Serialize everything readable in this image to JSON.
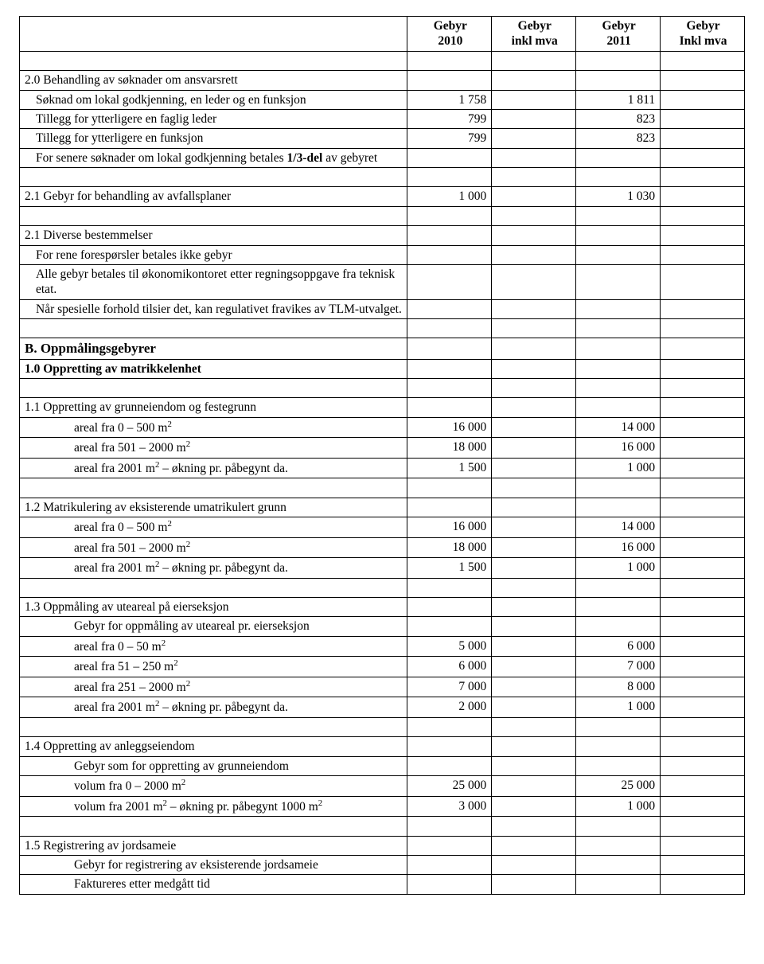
{
  "header": {
    "col1a": "Gebyr",
    "col1b": "2010",
    "col2a": "Gebyr",
    "col2b": "inkl mva",
    "col3a": "Gebyr",
    "col3b": "2011",
    "col4a": "Gebyr",
    "col4b": "Inkl mva"
  },
  "rows": [
    {
      "t": "blank"
    },
    {
      "t": "text",
      "cls": "sub-head",
      "text": "2.0 Behandling av søknader om ansvarsrett"
    },
    {
      "t": "data",
      "cls": "indent-1",
      "text": "Søknad om lokal godkjenning, en leder og en funksjon",
      "c1": "1 758",
      "c3": "1 811"
    },
    {
      "t": "data",
      "cls": "indent-1",
      "text": "Tillegg for ytterligere en faglig leder",
      "c1": "799",
      "c3": "823"
    },
    {
      "t": "data",
      "cls": "indent-1",
      "text": "Tillegg for ytterligere en funksjon",
      "c1": "799",
      "c3": "823"
    },
    {
      "t": "html",
      "cls": "indent-1",
      "html": "For senere søknader om lokal godkjenning betales <span class=\"bold-part\">1/3-del</span> av gebyret"
    },
    {
      "t": "blank"
    },
    {
      "t": "data",
      "cls": "sub-head",
      "text": "2.1 Gebyr for behandling av avfallsplaner",
      "c1": "1 000",
      "c3": "1 030"
    },
    {
      "t": "blank"
    },
    {
      "t": "text",
      "cls": "sub-head",
      "text": "2.1 Diverse bestemmelser"
    },
    {
      "t": "text",
      "cls": "indent-1",
      "text": "For rene forespørsler betales ikke gebyr"
    },
    {
      "t": "text",
      "cls": "indent-1",
      "text": "Alle gebyr betales til økonomikontoret etter regningsoppgave fra teknisk etat."
    },
    {
      "t": "text",
      "cls": "indent-1",
      "text": "Når spesielle forhold tilsier det, kan regulativet fravikes av TLM-utvalget."
    },
    {
      "t": "blank"
    },
    {
      "t": "text",
      "cls": "section-head",
      "text": "B. Oppmålingsgebyrer"
    },
    {
      "t": "text",
      "cls": "sub-head bold-part",
      "text": "1.0 Oppretting av matrikkelenhet"
    },
    {
      "t": "blank"
    },
    {
      "t": "text",
      "cls": "sub-head",
      "text": "1.1 Oppretting av grunneiendom og festegrunn"
    },
    {
      "t": "data-html",
      "cls": "indent-2",
      "html": "areal fra 0 – 500 m<sup>2</sup>",
      "c1": "16 000",
      "c3": "14 000"
    },
    {
      "t": "data-html",
      "cls": "indent-2",
      "html": "areal fra 501 – 2000 m<sup>2</sup>",
      "c1": "18 000",
      "c3": "16 000"
    },
    {
      "t": "data-html",
      "cls": "indent-2",
      "html": "areal fra 2001 m<sup>2</sup> – økning pr. påbegynt da.",
      "c1": "1 500",
      "c3": "1 000"
    },
    {
      "t": "blank"
    },
    {
      "t": "text",
      "cls": "sub-head",
      "text": "1.2 Matrikulering av eksisterende umatrikulert grunn"
    },
    {
      "t": "data-html",
      "cls": "indent-2",
      "html": "areal fra 0 – 500 m<sup>2</sup>",
      "c1": "16 000",
      "c3": "14 000"
    },
    {
      "t": "data-html",
      "cls": "indent-2",
      "html": "areal fra 501 – 2000 m<sup>2</sup>",
      "c1": "18 000",
      "c3": "16 000"
    },
    {
      "t": "data-html",
      "cls": "indent-2",
      "html": "areal fra 2001 m<sup>2</sup> – økning pr. påbegynt da.",
      "c1": "1 500",
      "c3": "1 000"
    },
    {
      "t": "blank"
    },
    {
      "t": "text",
      "cls": "sub-head",
      "text": "1.3 Oppmåling av uteareal på eierseksjon"
    },
    {
      "t": "text",
      "cls": "indent-2",
      "text": "Gebyr for oppmåling av uteareal pr. eierseksjon"
    },
    {
      "t": "data-html",
      "cls": "indent-2",
      "html": "areal fra 0 – 50 m<sup>2</sup>",
      "c1": "5 000",
      "c3": "6 000"
    },
    {
      "t": "data-html",
      "cls": "indent-2",
      "html": "areal fra 51 – 250 m<sup>2</sup>",
      "c1": "6 000",
      "c3": "7 000"
    },
    {
      "t": "data-html",
      "cls": "indent-2",
      "html": "areal fra 251 – 2000 m<sup>2</sup>",
      "c1": "7 000",
      "c3": "8 000"
    },
    {
      "t": "data-html",
      "cls": "indent-2",
      "html": "areal fra 2001 m<sup>2</sup> – økning pr. påbegynt da.",
      "c1": "2 000",
      "c3": "1 000"
    },
    {
      "t": "blank"
    },
    {
      "t": "text",
      "cls": "sub-head",
      "text": "1.4 Oppretting av anleggseiendom"
    },
    {
      "t": "text",
      "cls": "indent-2",
      "text": "Gebyr som for oppretting av grunneiendom"
    },
    {
      "t": "data-html",
      "cls": "indent-2",
      "html": "volum fra 0 – 2000 m<sup>2</sup>",
      "c1": "25 000",
      "c3": "25 000"
    },
    {
      "t": "data-html",
      "cls": "indent-2",
      "html": "volum fra 2001 m<sup>2</sup> – økning pr. påbegynt 1000 m<sup>2</sup>",
      "c1": "3 000",
      "c3": "1 000"
    },
    {
      "t": "blank"
    },
    {
      "t": "text",
      "cls": "sub-head",
      "text": "1.5 Registrering av jordsameie"
    },
    {
      "t": "text",
      "cls": "indent-2",
      "text": "Gebyr for registrering av eksisterende jordsameie"
    },
    {
      "t": "text",
      "cls": "indent-2",
      "text": "Faktureres etter medgått tid"
    }
  ]
}
